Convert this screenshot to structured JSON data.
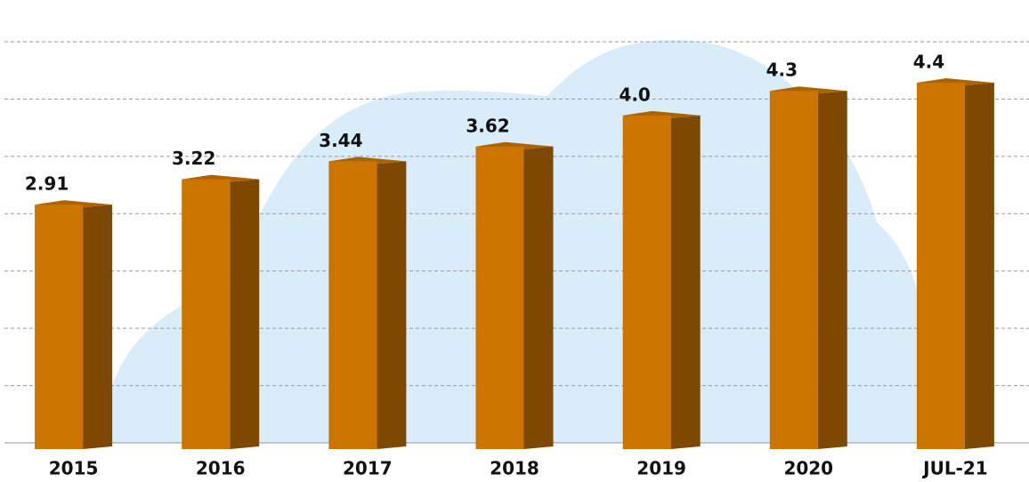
{
  "chart_data": {
    "type": "bar3d",
    "categories": [
      "2015",
      "2016",
      "2017",
      "2018",
      "2019",
      "2020",
      "JUL-21"
    ],
    "values": [
      2.91,
      3.22,
      3.44,
      3.62,
      4.0,
      4.3,
      4.4
    ],
    "value_labels": [
      "2.91",
      "3.22",
      "3.44",
      "3.62",
      "4.0",
      "4.3",
      "4.4"
    ],
    "color": "#cc7400",
    "ylim": [
      0,
      4.9
    ],
    "yticks": [
      0,
      0.7,
      1.4,
      2.1,
      2.8,
      3.5,
      4.2,
      4.9
    ],
    "grid": true
  }
}
